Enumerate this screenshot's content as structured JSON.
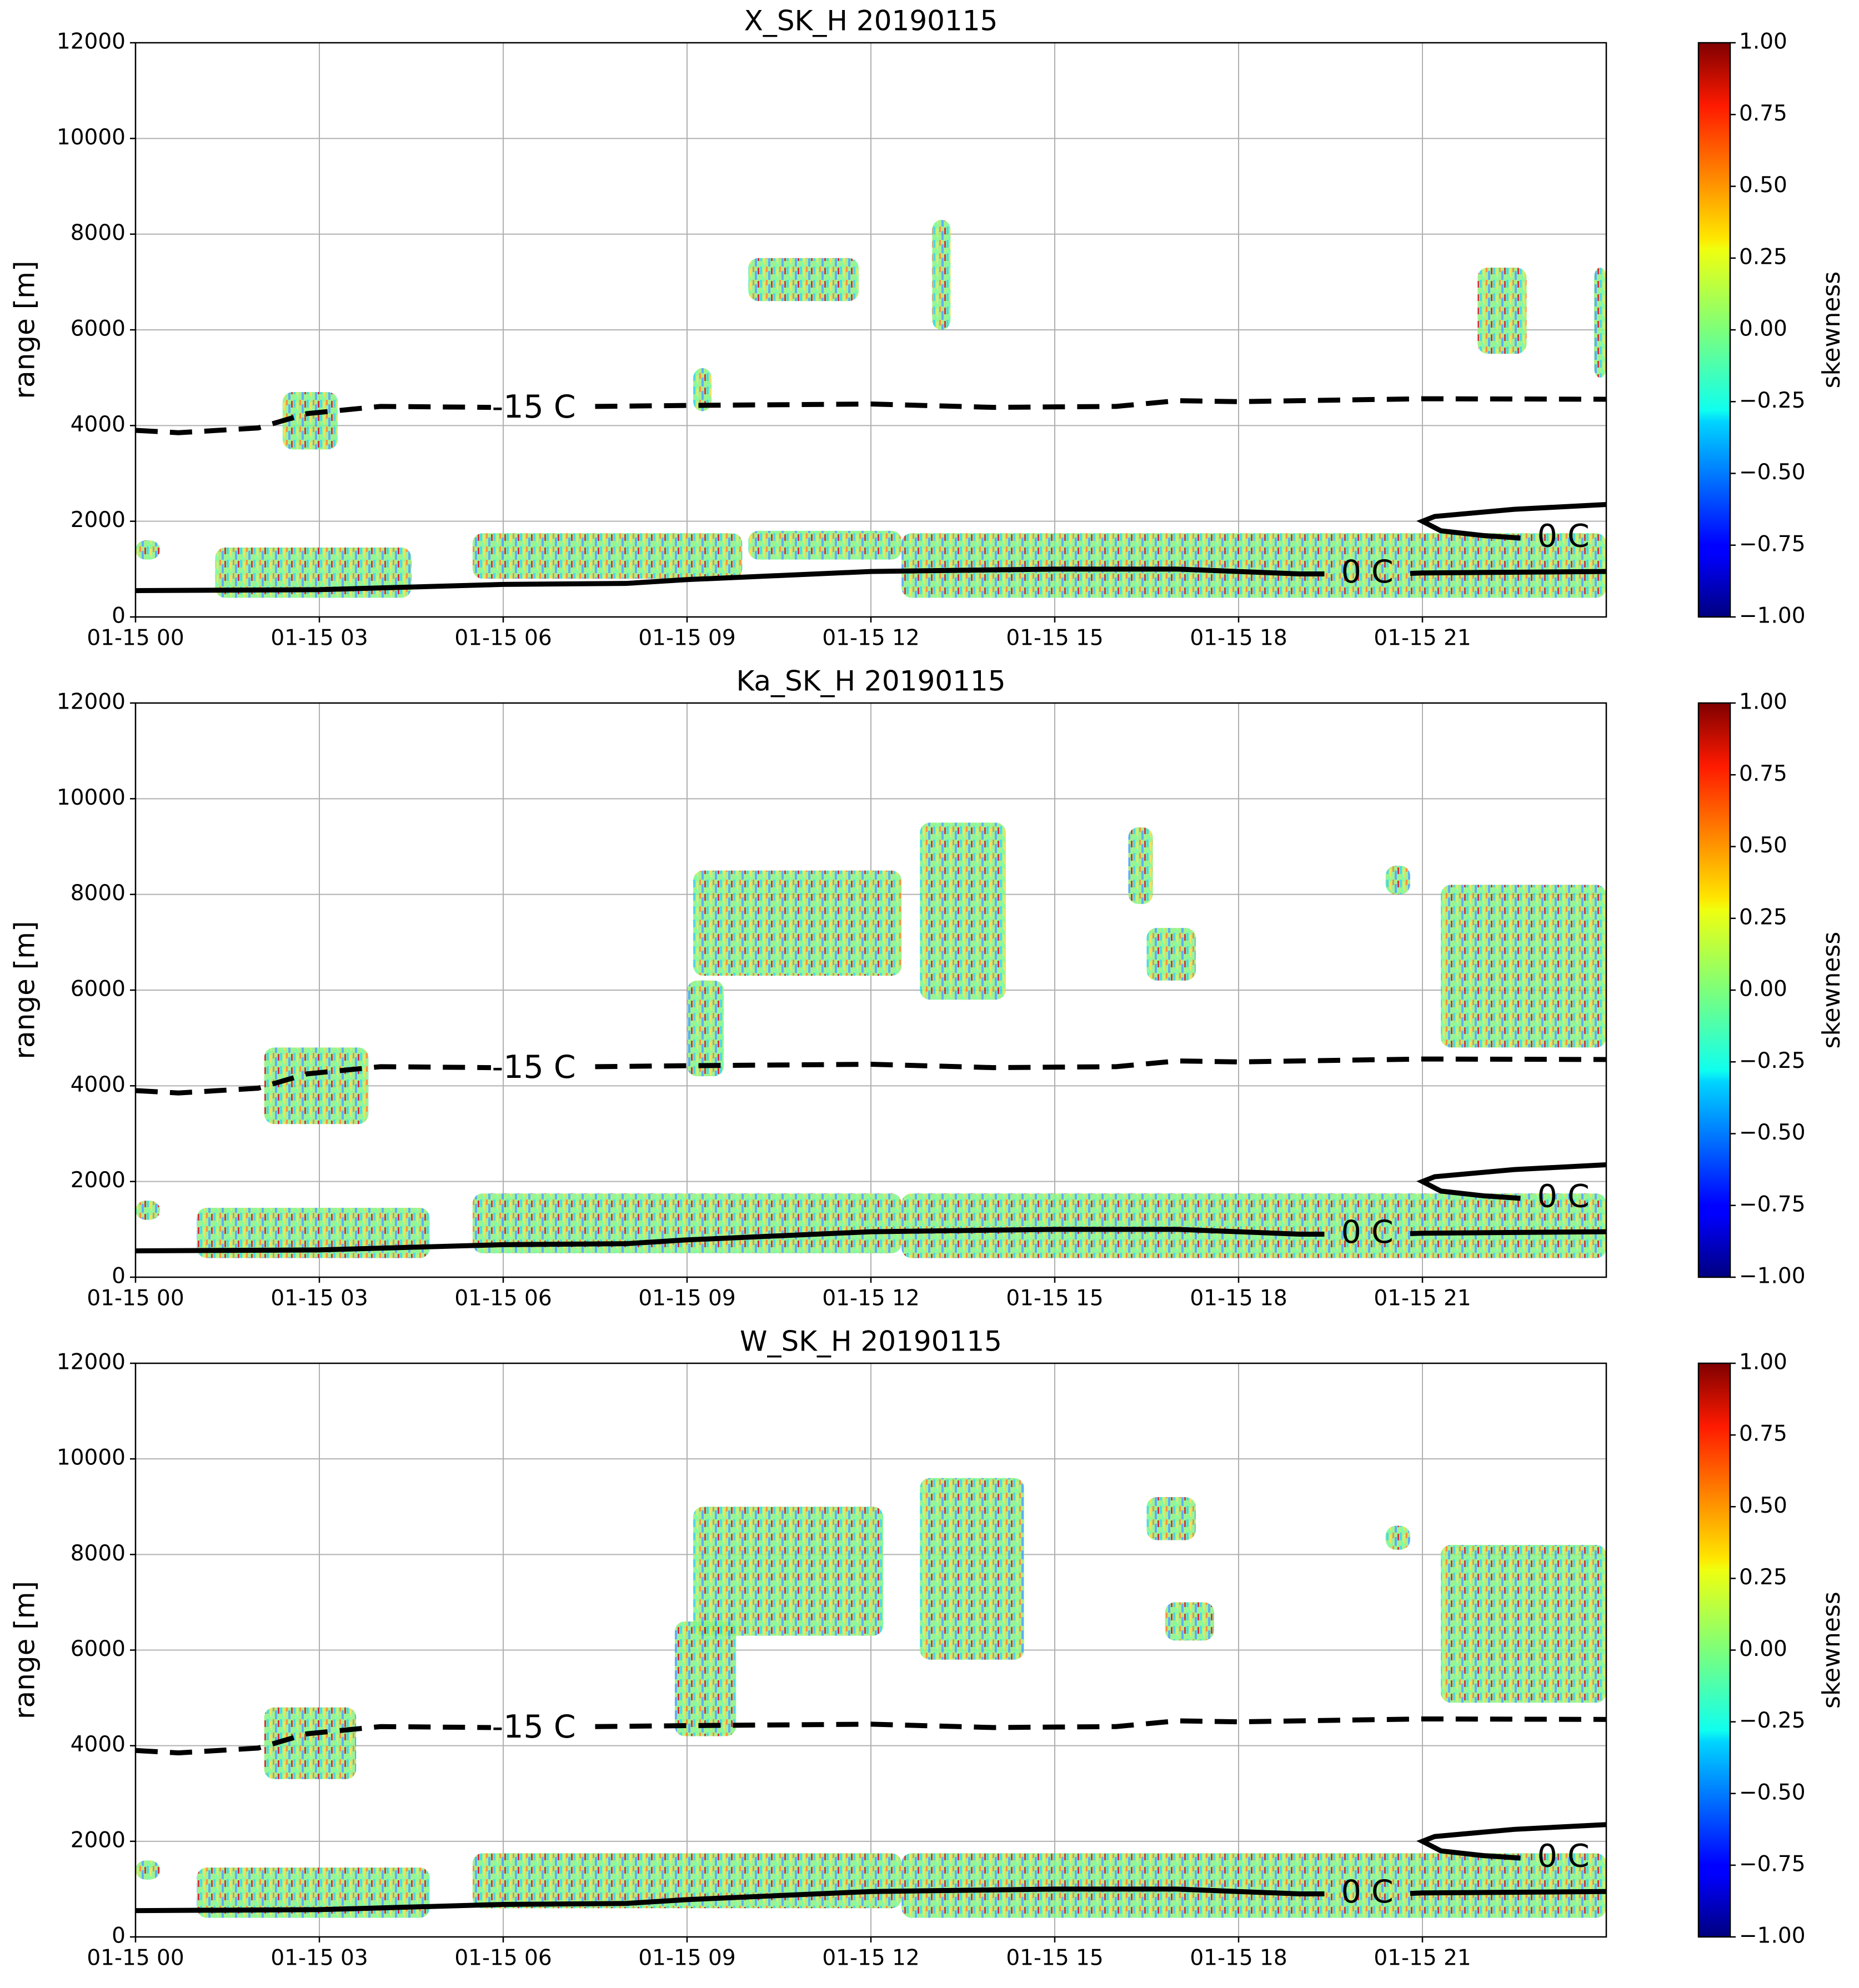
{
  "chart_data": [
    {
      "type": "time-height",
      "title": "X_SK_H 20190115",
      "ylabel": "range [m]",
      "colorbar_label": "skewness",
      "colormap": "jet",
      "xlim": [
        0,
        24
      ],
      "xticks": [
        {
          "value": 0,
          "label": "01-15 00"
        },
        {
          "value": 3,
          "label": "01-15 03"
        },
        {
          "value": 6,
          "label": "01-15 06"
        },
        {
          "value": 9,
          "label": "01-15 09"
        },
        {
          "value": 12,
          "label": "01-15 12"
        },
        {
          "value": 15,
          "label": "01-15 15"
        },
        {
          "value": 18,
          "label": "01-15 18"
        },
        {
          "value": 21,
          "label": "01-15 21"
        }
      ],
      "ylim": [
        0,
        12000
      ],
      "yticks": [
        0,
        2000,
        4000,
        6000,
        8000,
        10000,
        12000
      ],
      "grid": true,
      "clim": [
        -1,
        1
      ],
      "cticks": [
        {
          "value": -1,
          "label": "−1.00"
        },
        {
          "value": -0.75,
          "label": "−0.75"
        },
        {
          "value": -0.5,
          "label": "−0.50"
        },
        {
          "value": -0.25,
          "label": "−0.25"
        },
        {
          "value": 0,
          "label": "0.00"
        },
        {
          "value": 0.25,
          "label": "0.25"
        },
        {
          "value": 0.5,
          "label": "0.50"
        },
        {
          "value": 0.75,
          "label": "0.75"
        },
        {
          "value": 1,
          "label": "1.00"
        }
      ],
      "regions": [
        {
          "x": [
            0,
            0.4
          ],
          "y": [
            1200,
            1600
          ]
        },
        {
          "x": [
            1.3,
            4.5
          ],
          "y": [
            400,
            1450
          ]
        },
        {
          "x": [
            5.5,
            9.9
          ],
          "y": [
            800,
            1750
          ]
        },
        {
          "x": [
            10,
            12.5
          ],
          "y": [
            1200,
            1800
          ]
        },
        {
          "x": [
            12.5,
            24
          ],
          "y": [
            400,
            1750
          ]
        },
        {
          "x": [
            2.4,
            3.3
          ],
          "y": [
            3500,
            4700
          ]
        },
        {
          "x": [
            9.1,
            9.4
          ],
          "y": [
            4300,
            5200
          ]
        },
        {
          "x": [
            10,
            11.8
          ],
          "y": [
            6600,
            7500
          ]
        },
        {
          "x": [
            13,
            13.3
          ],
          "y": [
            6000,
            8300
          ]
        },
        {
          "x": [
            21.9,
            22.7
          ],
          "y": [
            5500,
            7300
          ]
        },
        {
          "x": [
            23.8,
            24
          ],
          "y": [
            5000,
            7300
          ]
        }
      ],
      "contours": [
        {
          "label": "-15 C",
          "style": "dashed",
          "x": [
            0,
            0.7,
            2,
            2.8,
            4,
            5.8,
            null,
            7.5,
            9,
            12,
            14,
            16,
            17,
            18,
            21,
            24
          ],
          "y": [
            3900,
            3850,
            3950,
            4250,
            4400,
            4380,
            null,
            4400,
            4420,
            4450,
            4380,
            4400,
            4520,
            4500,
            4560,
            4550
          ]
        },
        {
          "label": "0 C",
          "style": "solid",
          "x": [
            0,
            3,
            6,
            8,
            9,
            12,
            15,
            17,
            19,
            19.4,
            null,
            20.8,
            21,
            24
          ],
          "y": [
            550,
            570,
            680,
            700,
            780,
            950,
            1000,
            1000,
            900,
            900,
            null,
            910,
            920,
            950
          ]
        },
        {
          "label": "0 C",
          "style": "solid",
          "x": [
            24,
            22.5,
            21.2,
            21,
            21.3,
            22,
            22.6,
            null,
            24
          ],
          "y": [
            2350,
            2250,
            2100,
            2000,
            1800,
            1700,
            1650,
            null,
            1620
          ]
        }
      ]
    },
    {
      "type": "time-height",
      "title": "Ka_SK_H 20190115",
      "ylabel": "range [m]",
      "colorbar_label": "skewness",
      "colormap": "jet",
      "xlim": [
        0,
        24
      ],
      "xticks": [
        {
          "value": 0,
          "label": "01-15 00"
        },
        {
          "value": 3,
          "label": "01-15 03"
        },
        {
          "value": 6,
          "label": "01-15 06"
        },
        {
          "value": 9,
          "label": "01-15 09"
        },
        {
          "value": 12,
          "label": "01-15 12"
        },
        {
          "value": 15,
          "label": "01-15 15"
        },
        {
          "value": 18,
          "label": "01-15 18"
        },
        {
          "value": 21,
          "label": "01-15 21"
        }
      ],
      "ylim": [
        0,
        12000
      ],
      "yticks": [
        0,
        2000,
        4000,
        6000,
        8000,
        10000,
        12000
      ],
      "grid": true,
      "clim": [
        -1,
        1
      ],
      "cticks": [
        {
          "value": -1,
          "label": "−1.00"
        },
        {
          "value": -0.75,
          "label": "−0.75"
        },
        {
          "value": -0.5,
          "label": "−0.50"
        },
        {
          "value": -0.25,
          "label": "−0.25"
        },
        {
          "value": 0,
          "label": "0.00"
        },
        {
          "value": 0.25,
          "label": "0.25"
        },
        {
          "value": 0.5,
          "label": "0.50"
        },
        {
          "value": 0.75,
          "label": "0.75"
        },
        {
          "value": 1,
          "label": "1.00"
        }
      ],
      "regions": [
        {
          "x": [
            0,
            0.4
          ],
          "y": [
            1200,
            1600
          ]
        },
        {
          "x": [
            1,
            4.8
          ],
          "y": [
            400,
            1450
          ]
        },
        {
          "x": [
            5.5,
            12.5
          ],
          "y": [
            500,
            1750
          ]
        },
        {
          "x": [
            12.5,
            24
          ],
          "y": [
            400,
            1750
          ]
        },
        {
          "x": [
            2.1,
            3.8
          ],
          "y": [
            3200,
            4800
          ]
        },
        {
          "x": [
            9,
            9.6
          ],
          "y": [
            4200,
            6200
          ]
        },
        {
          "x": [
            9.1,
            12.5
          ],
          "y": [
            6300,
            8500
          ]
        },
        {
          "x": [
            12.8,
            14.2
          ],
          "y": [
            5800,
            9500
          ]
        },
        {
          "x": [
            16.2,
            16.6
          ],
          "y": [
            7800,
            9400
          ]
        },
        {
          "x": [
            16.5,
            17.3
          ],
          "y": [
            6200,
            7300
          ]
        },
        {
          "x": [
            20.4,
            20.8
          ],
          "y": [
            8000,
            8600
          ]
        },
        {
          "x": [
            21.3,
            24
          ],
          "y": [
            4800,
            8200
          ]
        }
      ],
      "contours": [
        {
          "label": "-15 C",
          "style": "dashed",
          "x": [
            0,
            0.7,
            2,
            2.8,
            4,
            5.8,
            null,
            7.5,
            9,
            12,
            14,
            16,
            17,
            18,
            21,
            24
          ],
          "y": [
            3900,
            3850,
            3950,
            4250,
            4400,
            4380,
            null,
            4400,
            4420,
            4450,
            4380,
            4400,
            4520,
            4500,
            4560,
            4550
          ]
        },
        {
          "label": "0 C",
          "style": "solid",
          "x": [
            0,
            3,
            6,
            8,
            9,
            12,
            15,
            17,
            19,
            19.4,
            null,
            20.8,
            21,
            24
          ],
          "y": [
            550,
            570,
            680,
            700,
            780,
            950,
            1000,
            1000,
            900,
            900,
            null,
            910,
            920,
            950
          ]
        },
        {
          "label": "0 C",
          "style": "solid",
          "x": [
            24,
            22.5,
            21.2,
            21,
            21.3,
            22,
            22.6,
            null,
            24
          ],
          "y": [
            2350,
            2250,
            2100,
            2000,
            1800,
            1700,
            1650,
            null,
            1620
          ]
        }
      ]
    },
    {
      "type": "time-height",
      "title": "W_SK_H 20190115",
      "ylabel": "range [m]",
      "colorbar_label": "skewness",
      "colormap": "jet",
      "xlim": [
        0,
        24
      ],
      "xticks": [
        {
          "value": 0,
          "label": "01-15 00"
        },
        {
          "value": 3,
          "label": "01-15 03"
        },
        {
          "value": 6,
          "label": "01-15 06"
        },
        {
          "value": 9,
          "label": "01-15 09"
        },
        {
          "value": 12,
          "label": "01-15 12"
        },
        {
          "value": 15,
          "label": "01-15 15"
        },
        {
          "value": 18,
          "label": "01-15 18"
        },
        {
          "value": 21,
          "label": "01-15 21"
        }
      ],
      "ylim": [
        0,
        12000
      ],
      "yticks": [
        0,
        2000,
        4000,
        6000,
        8000,
        10000,
        12000
      ],
      "grid": true,
      "clim": [
        -1,
        1
      ],
      "cticks": [
        {
          "value": -1,
          "label": "−1.00"
        },
        {
          "value": -0.75,
          "label": "−0.75"
        },
        {
          "value": -0.5,
          "label": "−0.50"
        },
        {
          "value": -0.25,
          "label": "−0.25"
        },
        {
          "value": 0,
          "label": "0.00"
        },
        {
          "value": 0.25,
          "label": "0.25"
        },
        {
          "value": 0.5,
          "label": "0.50"
        },
        {
          "value": 0.75,
          "label": "0.75"
        },
        {
          "value": 1,
          "label": "1.00"
        }
      ],
      "regions": [
        {
          "x": [
            0,
            0.4
          ],
          "y": [
            1200,
            1600
          ]
        },
        {
          "x": [
            1,
            4.8
          ],
          "y": [
            400,
            1450
          ]
        },
        {
          "x": [
            5.5,
            12.5
          ],
          "y": [
            600,
            1750
          ]
        },
        {
          "x": [
            12.5,
            24
          ],
          "y": [
            400,
            1750
          ]
        },
        {
          "x": [
            2.1,
            3.6
          ],
          "y": [
            3300,
            4800
          ]
        },
        {
          "x": [
            8.8,
            9.8
          ],
          "y": [
            4200,
            6600
          ]
        },
        {
          "x": [
            9.1,
            12.2
          ],
          "y": [
            6300,
            9000
          ]
        },
        {
          "x": [
            12.8,
            14.5
          ],
          "y": [
            5800,
            9600
          ]
        },
        {
          "x": [
            16.5,
            17.3
          ],
          "y": [
            8300,
            9200
          ]
        },
        {
          "x": [
            16.8,
            17.6
          ],
          "y": [
            6200,
            7000
          ]
        },
        {
          "x": [
            20.4,
            20.8
          ],
          "y": [
            8100,
            8600
          ]
        },
        {
          "x": [
            21.3,
            24
          ],
          "y": [
            4900,
            8200
          ]
        }
      ],
      "contours": [
        {
          "label": "-15 C",
          "style": "dashed",
          "x": [
            0,
            0.7,
            2,
            2.8,
            4,
            5.8,
            null,
            7.5,
            9,
            12,
            14,
            16,
            17,
            18,
            21,
            24
          ],
          "y": [
            3900,
            3850,
            3950,
            4250,
            4400,
            4380,
            null,
            4400,
            4420,
            4450,
            4380,
            4400,
            4520,
            4500,
            4560,
            4550
          ]
        },
        {
          "label": "0 C",
          "style": "solid",
          "x": [
            0,
            3,
            6,
            8,
            9,
            12,
            15,
            17,
            19,
            19.4,
            null,
            20.8,
            21,
            24
          ],
          "y": [
            550,
            570,
            680,
            700,
            780,
            950,
            1000,
            1000,
            900,
            900,
            null,
            910,
            920,
            950
          ]
        },
        {
          "label": "0 C",
          "style": "solid",
          "x": [
            24,
            22.5,
            21.2,
            21,
            21.3,
            22,
            22.6,
            null,
            24
          ],
          "y": [
            2350,
            2250,
            2100,
            2000,
            1800,
            1700,
            1650,
            null,
            1620
          ]
        }
      ]
    }
  ]
}
